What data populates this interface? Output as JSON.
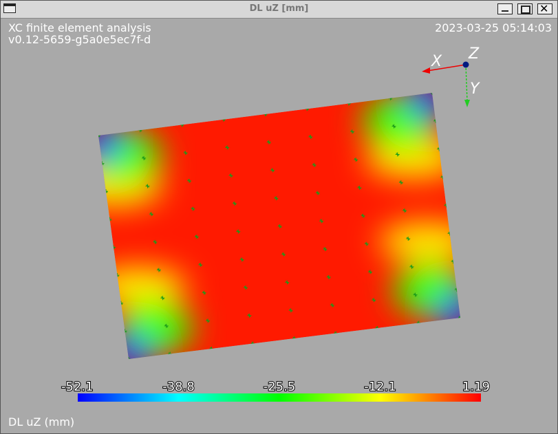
{
  "window": {
    "title": "DL uZ [mm]"
  },
  "header": {
    "program": "XC finite element analysis",
    "version": "v0.12-5659-g5a0e5ec7f-d",
    "timestamp": "2023-03-25 05:14:03"
  },
  "axes": {
    "x": "X",
    "y": "Y",
    "z": "Z"
  },
  "colorbar": {
    "labels": [
      "-52.1",
      "-38.8",
      "-25.5",
      "-12.1",
      "1.19"
    ],
    "title": "DL uZ (mm)"
  }
}
